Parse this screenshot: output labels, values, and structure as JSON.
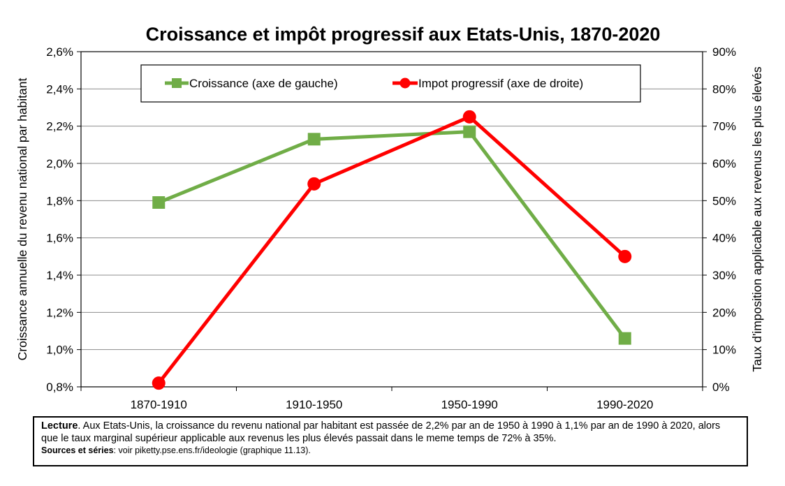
{
  "chart_data": {
    "type": "line",
    "title": "Croissance et impôt progressif aux Etats-Unis, 1870-2020",
    "categories": [
      "1870-1910",
      "1910-1950",
      "1950-1990",
      "1990-2020"
    ],
    "ylabel_left": "Croissance annuelle du revenu national par habitant",
    "ylabel_right": "Taux d'imposition applicable aux revenus les plus élevés",
    "ylim_left": [
      0.8,
      2.6
    ],
    "ylim_right": [
      0,
      90
    ],
    "yticks_left": [
      "0,8%",
      "1,0%",
      "1,2%",
      "1,4%",
      "1,6%",
      "1,8%",
      "2,0%",
      "2,2%",
      "2,4%",
      "2,6%"
    ],
    "yticks_right": [
      "0%",
      "10%",
      "20%",
      "30%",
      "40%",
      "50%",
      "60%",
      "70%",
      "80%",
      "90%"
    ],
    "grid": true,
    "legend_position": "top-center",
    "series": [
      {
        "name": "Croissance (axe de gauche)",
        "axis": "left",
        "marker": "square",
        "color": "#70AD47",
        "values": [
          1.79,
          2.13,
          2.17,
          1.06
        ]
      },
      {
        "name": "Impot progressif (axe de droite)",
        "axis": "right",
        "marker": "circle",
        "color": "#FF0000",
        "values": [
          1,
          54.5,
          72.5,
          35
        ]
      }
    ]
  },
  "note": {
    "lead_label": "Lecture",
    "lead_text": ". Aux Etats-Unis, la croissance du revenu national par habitant est passée de 2,2% par an de 1950 à 1990 à 1,1% par an de 1990 à 2020, alors que le taux marginal supérieur applicable aux revenus les plus élevés passait dans le meme temps de 72% à 35%.",
    "source_label": "Sources et séries",
    "source_text": ": voir piketty.pse.ens.fr/ideologie (graphique 11.13)."
  }
}
